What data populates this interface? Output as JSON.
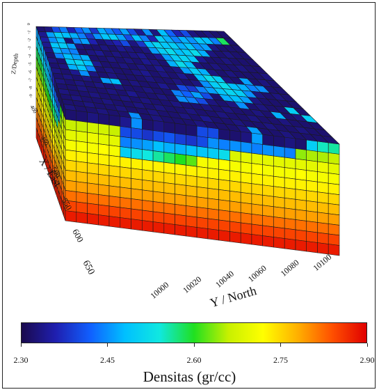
{
  "chart_data": {
    "type": "heatmap",
    "subtype": "3d-voxel-block",
    "x_axis": {
      "label": "X / East",
      "ticks": [
        "400",
        "450",
        "500",
        "550",
        "600",
        "650"
      ]
    },
    "y_axis": {
      "label": "Y / North",
      "ticks": [
        "10000",
        "10020",
        "10040",
        "10060",
        "10080",
        "10100"
      ]
    },
    "z_axis": {
      "label": "Z/Depth",
      "ticks": [
        "0",
        "-1",
        "-2",
        "-3",
        "-4",
        "-5",
        "-6",
        "-7",
        "-8",
        "-9"
      ]
    },
    "colorbar": {
      "label": "Densitas (gr/cc)",
      "min": 2.3,
      "max": 2.9,
      "ticks": [
        "2.30",
        "2.45",
        "2.60",
        "2.75",
        "2.90"
      ],
      "colormap": [
        "#1a0a4d",
        "#1f1fb0",
        "#1060ff",
        "#00c0ff",
        "#10e8e0",
        "#20e020",
        "#c8f000",
        "#ffff00",
        "#ffb000",
        "#ff5000",
        "#e00000"
      ]
    },
    "top_surface_values": [
      [
        2.32,
        2.33,
        2.4,
        2.44,
        2.36,
        2.42,
        2.45,
        2.38,
        2.47,
        2.44,
        2.41,
        2.46,
        2.4,
        2.34,
        2.45,
        2.33,
        2.48,
        2.42,
        2.36,
        2.4,
        2.33,
        2.32,
        2.33,
        2.32,
        2.32
      ],
      [
        2.34,
        2.46,
        2.5,
        2.48,
        2.47,
        2.44,
        2.38,
        2.45,
        2.49,
        2.5,
        2.46,
        2.4,
        2.48,
        2.44,
        2.36,
        2.5,
        2.47,
        2.44,
        2.47,
        2.45,
        2.49,
        2.48,
        2.44,
        2.58,
        2.32
      ],
      [
        2.35,
        2.45,
        2.48,
        2.32,
        2.44,
        2.46,
        2.36,
        2.32,
        2.34,
        2.36,
        2.4,
        2.33,
        2.38,
        2.48,
        2.51,
        2.49,
        2.5,
        2.47,
        2.49,
        2.45,
        2.46,
        2.33,
        2.32,
        2.32,
        2.32
      ],
      [
        2.34,
        2.49,
        2.5,
        2.46,
        2.33,
        2.32,
        2.32,
        2.33,
        2.32,
        2.34,
        2.33,
        2.32,
        2.33,
        2.46,
        2.5,
        2.52,
        2.48,
        2.5,
        2.52,
        2.47,
        2.33,
        2.32,
        2.33,
        2.32,
        2.32
      ],
      [
        2.33,
        2.47,
        2.45,
        2.44,
        2.32,
        2.33,
        2.34,
        2.32,
        2.33,
        2.32,
        2.33,
        2.34,
        2.32,
        2.34,
        2.46,
        2.5,
        2.51,
        2.49,
        2.34,
        2.32,
        2.32,
        2.33,
        2.32,
        2.32,
        2.32
      ],
      [
        2.32,
        2.44,
        2.48,
        2.46,
        2.47,
        2.32,
        2.32,
        2.33,
        2.32,
        2.33,
        2.32,
        2.34,
        2.33,
        2.32,
        2.47,
        2.52,
        2.48,
        2.33,
        2.32,
        2.33,
        2.32,
        2.32,
        2.33,
        2.32,
        2.32
      ],
      [
        2.33,
        2.32,
        2.5,
        2.51,
        2.48,
        2.34,
        2.32,
        2.32,
        2.33,
        2.32,
        2.33,
        2.32,
        2.34,
        2.32,
        2.33,
        2.46,
        2.5,
        2.47,
        2.33,
        2.32,
        2.33,
        2.32,
        2.32,
        2.32,
        2.33
      ],
      [
        2.32,
        2.33,
        2.47,
        2.49,
        2.44,
        2.32,
        2.33,
        2.32,
        2.32,
        2.33,
        2.34,
        2.32,
        2.33,
        2.32,
        2.34,
        2.32,
        2.48,
        2.52,
        2.5,
        2.33,
        2.32,
        2.46,
        2.32,
        2.33,
        2.32
      ],
      [
        2.33,
        2.32,
        2.34,
        2.45,
        2.33,
        2.32,
        2.33,
        2.32,
        2.32,
        2.32,
        2.33,
        2.32,
        2.32,
        2.33,
        2.32,
        2.33,
        2.45,
        2.5,
        2.52,
        2.48,
        2.47,
        2.44,
        2.45,
        2.32,
        2.32
      ],
      [
        2.32,
        2.33,
        2.32,
        2.33,
        2.32,
        2.46,
        2.48,
        2.32,
        2.33,
        2.32,
        2.32,
        2.34,
        2.32,
        2.4,
        2.38,
        2.44,
        2.46,
        2.49,
        2.51,
        2.5,
        2.45,
        2.33,
        2.32,
        2.33,
        2.32
      ],
      [
        2.33,
        2.32,
        2.33,
        2.32,
        2.33,
        2.32,
        2.33,
        2.32,
        2.32,
        2.33,
        2.32,
        2.32,
        2.44,
        2.42,
        2.46,
        2.4,
        2.32,
        2.47,
        2.48,
        2.46,
        2.33,
        2.32,
        2.32,
        2.32,
        2.32
      ],
      [
        2.32,
        2.32,
        2.33,
        2.32,
        2.32,
        2.33,
        2.32,
        2.34,
        2.32,
        2.32,
        2.33,
        2.32,
        2.45,
        2.44,
        2.4,
        2.33,
        2.32,
        2.33,
        2.45,
        2.32,
        2.33,
        2.32,
        2.32,
        2.5,
        2.32
      ],
      [
        2.33,
        2.32,
        2.32,
        2.33,
        2.32,
        2.32,
        2.33,
        2.32,
        2.33,
        2.32,
        2.32,
        2.33,
        2.32,
        2.32,
        2.33,
        2.32,
        2.33,
        2.32,
        2.32,
        2.33,
        2.32,
        2.47,
        2.32,
        2.33,
        2.5
      ],
      [
        2.32,
        2.33,
        2.32,
        2.32,
        2.33,
        2.32,
        2.32,
        2.33,
        2.32,
        2.33,
        2.32,
        2.32,
        2.33,
        2.32,
        2.32,
        2.33,
        2.32,
        2.32,
        2.33,
        2.32,
        2.32,
        2.33,
        2.32,
        2.32,
        2.32
      ],
      [
        2.32,
        2.32,
        2.33,
        2.32,
        2.32,
        2.33,
        2.32,
        2.32,
        2.33,
        2.32,
        2.32,
        2.33,
        2.32,
        2.34,
        2.32,
        2.32,
        2.33,
        2.32,
        2.32,
        2.33,
        2.32,
        2.32,
        2.33,
        2.32,
        2.32
      ],
      [
        2.33,
        2.32,
        2.32,
        2.33,
        2.32,
        2.32,
        2.45,
        2.32,
        2.33,
        2.32,
        2.32,
        2.32,
        2.33,
        2.32,
        2.32,
        2.32,
        2.33,
        2.46,
        2.32,
        2.32,
        2.33,
        2.32,
        2.32,
        2.32,
        2.32
      ]
    ],
    "south_face_values": [
      [
        2.32,
        2.32,
        2.33,
        2.32,
        2.32,
        2.34,
        2.45,
        2.32,
        2.33,
        2.32,
        2.32,
        2.32,
        2.4,
        2.4,
        2.32,
        2.32,
        2.33,
        2.46,
        2.32,
        2.32,
        2.33,
        2.32,
        2.5,
        2.55,
        2.56
      ],
      [
        2.66,
        2.66,
        2.67,
        2.67,
        2.66,
        2.4,
        2.4,
        2.38,
        2.4,
        2.41,
        2.39,
        2.38,
        2.4,
        2.45,
        2.44,
        2.45,
        2.45,
        2.44,
        2.45,
        2.45,
        2.44,
        2.64,
        2.65,
        2.65,
        2.66
      ],
      [
        2.69,
        2.69,
        2.7,
        2.69,
        2.69,
        2.44,
        2.45,
        2.46,
        2.48,
        2.47,
        2.47,
        2.48,
        2.49,
        2.5,
        2.52,
        2.68,
        2.69,
        2.69,
        2.69,
        2.69,
        2.69,
        2.69,
        2.69,
        2.7,
        2.69
      ],
      [
        2.71,
        2.71,
        2.71,
        2.72,
        2.71,
        2.5,
        2.52,
        2.54,
        2.56,
        2.58,
        2.6,
        2.62,
        2.71,
        2.71,
        2.72,
        2.71,
        2.71,
        2.72,
        2.71,
        2.71,
        2.71,
        2.72,
        2.71,
        2.71,
        2.71
      ],
      [
        2.73,
        2.73,
        2.73,
        2.73,
        2.73,
        2.73,
        2.73,
        2.73,
        2.73,
        2.73,
        2.73,
        2.73,
        2.73,
        2.73,
        2.73,
        2.73,
        2.73,
        2.73,
        2.73,
        2.73,
        2.73,
        2.73,
        2.73,
        2.73,
        2.73
      ],
      [
        2.75,
        2.75,
        2.75,
        2.75,
        2.75,
        2.75,
        2.75,
        2.75,
        2.75,
        2.75,
        2.75,
        2.75,
        2.75,
        2.75,
        2.75,
        2.75,
        2.75,
        2.75,
        2.75,
        2.75,
        2.75,
        2.75,
        2.75,
        2.75,
        2.75
      ],
      [
        2.77,
        2.77,
        2.77,
        2.77,
        2.77,
        2.77,
        2.77,
        2.77,
        2.77,
        2.77,
        2.77,
        2.77,
        2.77,
        2.77,
        2.77,
        2.77,
        2.77,
        2.77,
        2.77,
        2.77,
        2.77,
        2.77,
        2.77,
        2.77,
        2.77
      ],
      [
        2.79,
        2.79,
        2.79,
        2.79,
        2.79,
        2.79,
        2.79,
        2.79,
        2.79,
        2.79,
        2.79,
        2.79,
        2.79,
        2.79,
        2.79,
        2.79,
        2.79,
        2.79,
        2.79,
        2.79,
        2.79,
        2.79,
        2.79,
        2.79,
        2.79
      ],
      [
        2.82,
        2.82,
        2.82,
        2.82,
        2.82,
        2.82,
        2.82,
        2.82,
        2.82,
        2.82,
        2.82,
        2.82,
        2.82,
        2.82,
        2.82,
        2.82,
        2.82,
        2.82,
        2.82,
        2.82,
        2.82,
        2.82,
        2.82,
        2.82,
        2.82
      ],
      [
        2.85,
        2.85,
        2.85,
        2.85,
        2.85,
        2.85,
        2.85,
        2.85,
        2.85,
        2.85,
        2.85,
        2.85,
        2.85,
        2.85,
        2.85,
        2.85,
        2.85,
        2.85,
        2.85,
        2.85,
        2.85,
        2.85,
        2.85,
        2.85,
        2.85
      ],
      [
        2.88,
        2.88,
        2.88,
        2.88,
        2.88,
        2.88,
        2.88,
        2.88,
        2.88,
        2.88,
        2.88,
        2.88,
        2.88,
        2.88,
        2.88,
        2.88,
        2.88,
        2.88,
        2.88,
        2.88,
        2.88,
        2.88,
        2.88,
        2.88,
        2.88
      ]
    ],
    "west_face_values": [
      [
        2.46,
        2.46,
        2.48,
        2.47,
        2.46,
        2.44,
        2.47,
        2.45,
        2.4,
        2.36,
        2.33,
        2.32,
        2.32,
        2.32,
        2.32,
        2.32
      ],
      [
        2.52,
        2.53,
        2.54,
        2.52,
        2.5,
        2.5,
        2.48,
        2.47,
        2.46,
        2.44,
        2.42,
        2.4,
        2.4,
        2.6,
        2.64,
        2.66
      ],
      [
        2.58,
        2.58,
        2.59,
        2.58,
        2.57,
        2.56,
        2.55,
        2.53,
        2.52,
        2.5,
        2.48,
        2.47,
        2.46,
        2.64,
        2.67,
        2.69
      ],
      [
        2.62,
        2.62,
        2.63,
        2.62,
        2.62,
        2.61,
        2.6,
        2.6,
        2.59,
        2.58,
        2.56,
        2.56,
        2.66,
        2.68,
        2.7,
        2.71
      ],
      [
        2.66,
        2.66,
        2.66,
        2.66,
        2.66,
        2.66,
        2.65,
        2.65,
        2.65,
        2.64,
        2.66,
        2.68,
        2.7,
        2.71,
        2.72,
        2.73
      ],
      [
        2.7,
        2.7,
        2.7,
        2.7,
        2.7,
        2.7,
        2.7,
        2.7,
        2.7,
        2.7,
        2.7,
        2.71,
        2.72,
        2.73,
        2.74,
        2.75
      ],
      [
        2.74,
        2.74,
        2.74,
        2.74,
        2.74,
        2.74,
        2.74,
        2.74,
        2.74,
        2.74,
        2.74,
        2.75,
        2.75,
        2.76,
        2.76,
        2.77
      ],
      [
        2.77,
        2.77,
        2.77,
        2.77,
        2.77,
        2.77,
        2.77,
        2.77,
        2.77,
        2.77,
        2.77,
        2.78,
        2.78,
        2.78,
        2.79,
        2.79
      ],
      [
        2.81,
        2.81,
        2.81,
        2.81,
        2.81,
        2.81,
        2.81,
        2.81,
        2.81,
        2.81,
        2.81,
        2.81,
        2.81,
        2.82,
        2.82,
        2.82
      ],
      [
        2.84,
        2.84,
        2.84,
        2.84,
        2.84,
        2.84,
        2.84,
        2.84,
        2.84,
        2.84,
        2.84,
        2.84,
        2.84,
        2.85,
        2.85,
        2.85
      ],
      [
        2.88,
        2.88,
        2.88,
        2.88,
        2.88,
        2.88,
        2.88,
        2.88,
        2.88,
        2.88,
        2.88,
        2.88,
        2.88,
        2.88,
        2.88,
        2.88
      ]
    ]
  }
}
